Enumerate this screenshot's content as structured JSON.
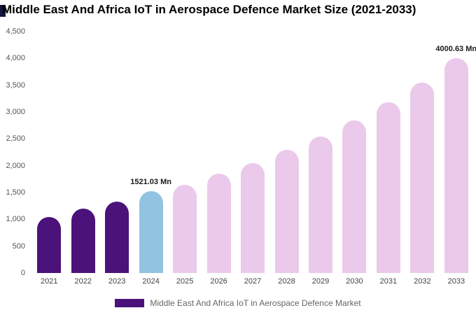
{
  "header": {
    "title": "Middle East And Africa IoT in Aerospace Defence Market Size (2021-2033)"
  },
  "legend": {
    "label": "Middle East And Africa IoT in Aerospace Defence Market",
    "swatch_color": "#4b1279"
  },
  "chart_data": {
    "type": "bar",
    "title": "Middle East And Africa IoT in Aerospace Defence Market Size (2021-2033)",
    "xlabel": "",
    "ylabel": "",
    "ylim": [
      0,
      4500
    ],
    "ytick_step": 500,
    "yticks": [
      "0",
      "500",
      "1,000",
      "1,500",
      "2,000",
      "2,500",
      "3,000",
      "3,500",
      "4,000",
      "4,500"
    ],
    "grid": false,
    "legend_position": "bottom",
    "categories": [
      "2021",
      "2022",
      "2023",
      "2024",
      "2025",
      "2026",
      "2027",
      "2028",
      "2029",
      "2030",
      "2031",
      "2032",
      "2033"
    ],
    "values": [
      1050,
      1200,
      1330,
      1521.03,
      1650,
      1850,
      2050,
      2300,
      2550,
      2850,
      3180,
      3550,
      4000.63
    ],
    "color_groups": [
      "historical",
      "historical",
      "historical",
      "current",
      "forecast",
      "forecast",
      "forecast",
      "forecast",
      "forecast",
      "forecast",
      "forecast",
      "forecast",
      "forecast"
    ],
    "bar_colors": {
      "historical": "#4b1279",
      "current": "#92c4e2",
      "forecast": "#ebc9eb"
    },
    "annotations": [
      {
        "index": 3,
        "text": "1521.03 Mn"
      },
      {
        "index": 12,
        "text": "4000.63 Mn"
      }
    ]
  }
}
